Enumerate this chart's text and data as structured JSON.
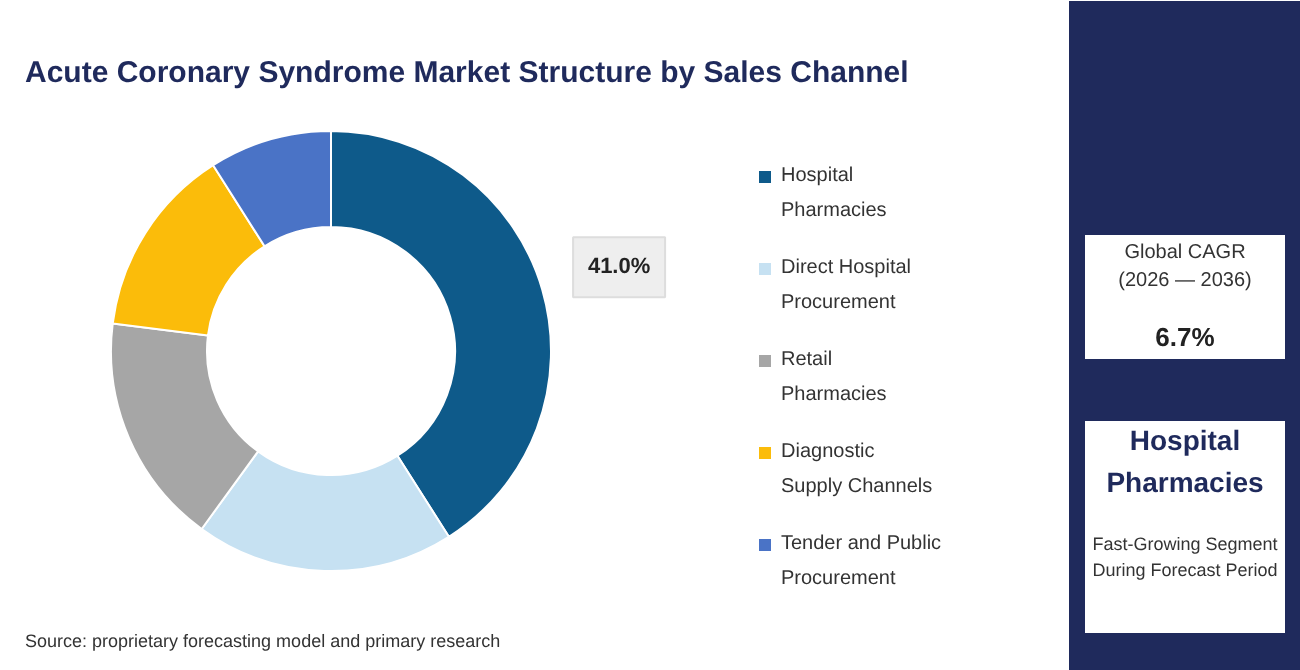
{
  "chart_data": {
    "type": "donut",
    "title": "Acute Coronary Syndrome Market Structure by Sales Channel",
    "categories": [
      "Hospital Pharmacies",
      "Direct Hospital Procurement",
      "Retail Pharmacies",
      "Diagnostic Supply Channels",
      "Tender and Public Procurement"
    ],
    "values": [
      41.0,
      19,
      17,
      14,
      9
    ],
    "colors": [
      "#0e5a8a",
      "#c6e1f2",
      "#a6a6a6",
      "#fbbc0a",
      "#4a73c6"
    ],
    "value_labels": [
      "41.0%",
      null,
      null,
      null,
      null
    ],
    "legend": "right",
    "annotations": [
      "Global CAGR (2026 — 2036)",
      "6.7%",
      "Hospital Pharmacies",
      "Fast-Growing Segment During Forecast Period",
      "Source: proprietary forecasting model and primary research"
    ]
  }
}
